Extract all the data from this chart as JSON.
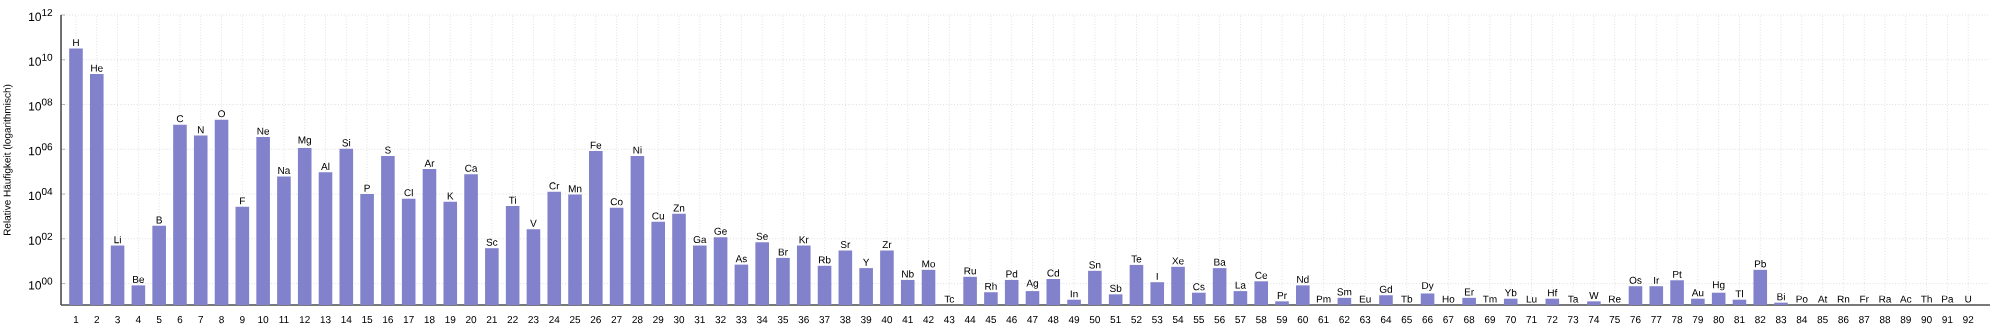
{
  "chart_data": {
    "type": "bar",
    "ylabel": "Relative Häufigkeit (logarithmisch)",
    "log": "y",
    "grid": true,
    "color": "#8282cc",
    "ylim": [
      0.11,
      1000000000000.0
    ],
    "yticks": [
      {
        "value": 1,
        "label": "10$^{00}$"
      },
      {
        "value": 100,
        "label": "10$^{02}$"
      },
      {
        "value": 10000,
        "label": "10$^{04}$"
      },
      {
        "value": 1000000,
        "label": "10$^{06}$"
      },
      {
        "value": 100000000,
        "label": "10$^{08}$"
      },
      {
        "value": 10000000000,
        "label": "10$^{10}$"
      },
      {
        "value": 1000000000000,
        "label": "10$^{12}$"
      }
    ],
    "categories": [
      "1",
      "2",
      "3",
      "4",
      "5",
      "6",
      "7",
      "8",
      "9",
      "10",
      "11",
      "12",
      "13",
      "14",
      "15",
      "16",
      "17",
      "18",
      "19",
      "20",
      "21",
      "22",
      "23",
      "24",
      "25",
      "26",
      "27",
      "28",
      "29",
      "30",
      "31",
      "32",
      "33",
      "34",
      "35",
      "36",
      "37",
      "38",
      "39",
      "40",
      "41",
      "42",
      "43",
      "44",
      "45",
      "46",
      "47",
      "48",
      "49",
      "50",
      "51",
      "52",
      "53",
      "54",
      "55",
      "56",
      "57",
      "58",
      "59",
      "60",
      "61",
      "62",
      "63",
      "64",
      "65",
      "66",
      "67",
      "68",
      "69",
      "70",
      "71",
      "72",
      "73",
      "74",
      "75",
      "76",
      "77",
      "78",
      "79",
      "80",
      "81",
      "82",
      "83",
      "84",
      "85",
      "86",
      "87",
      "88",
      "89",
      "90",
      "91",
      "92"
    ],
    "values": [
      32000000000.0,
      2300000000.0,
      50,
      0.83,
      380,
      12600000.0,
      4100000.0,
      21000000.0,
      2700,
      3500000.0,
      61000.0,
      1150000.0,
      93000.0,
      1050000.0,
      10000.0,
      500000.0,
      6200,
      130000.0,
      4500,
      77000.0,
      38,
      2900,
      270,
      12500.0,
      9500,
      830000.0,
      2450,
      500000.0,
      570,
      1300,
      50,
      118,
      7,
      70,
      14,
      50,
      6.2,
      30,
      4.9,
      30,
      1.45,
      4.1,
      null,
      2.0,
      0.41,
      1.45,
      0.46,
      1.6,
      0.19,
      3.7,
      0.33,
      6.8,
      1.15,
      5.6,
      0.39,
      4.9,
      0.46,
      1.26,
      0.16,
      0.83,
      null,
      0.23,
      null,
      0.3,
      null,
      0.36,
      null,
      0.23,
      null,
      0.21,
      null,
      0.21,
      null,
      0.16,
      null,
      0.76,
      0.76,
      1.4,
      0.21,
      0.39,
      0.19,
      4.1,
      0.14,
      null,
      null,
      null,
      null,
      null,
      null,
      null,
      null,
      null
    ],
    "annotations": [
      {
        "text": "H",
        "x": "1",
        "y": 32000000000.0
      },
      {
        "text": "He",
        "x": "2",
        "y": 2300000000.0
      },
      {
        "text": "Li",
        "x": "3",
        "y": 50
      },
      {
        "text": "Be",
        "x": "4",
        "y": 0.83
      },
      {
        "text": "B",
        "x": "5",
        "y": 380
      },
      {
        "text": "C",
        "x": "6",
        "y": 12600000.0
      },
      {
        "text": "N",
        "x": "7",
        "y": 4100000.0
      },
      {
        "text": "O",
        "x": "8",
        "y": 21000000.0
      },
      {
        "text": "F",
        "x": "9",
        "y": 2700
      },
      {
        "text": "Ne",
        "x": "10",
        "y": 3500000.0
      },
      {
        "text": "Na",
        "x": "11",
        "y": 61000.0
      },
      {
        "text": "Mg",
        "x": "12",
        "y": 1150000.0
      },
      {
        "text": "Al",
        "x": "13",
        "y": 93000.0
      },
      {
        "text": "Si",
        "x": "14",
        "y": 1050000.0
      },
      {
        "text": "P",
        "x": "15",
        "y": 10000.0
      },
      {
        "text": "S",
        "x": "16",
        "y": 500000.0
      },
      {
        "text": "Cl",
        "x": "17",
        "y": 6200
      },
      {
        "text": "Ar",
        "x": "18",
        "y": 130000.0
      },
      {
        "text": "K",
        "x": "19",
        "y": 4500
      },
      {
        "text": "Ca",
        "x": "20",
        "y": 77000.0
      },
      {
        "text": "Sc",
        "x": "21",
        "y": 38
      },
      {
        "text": "Ti",
        "x": "22",
        "y": 2900
      },
      {
        "text": "V",
        "x": "23",
        "y": 270
      },
      {
        "text": "Cr",
        "x": "24",
        "y": 12500.0
      },
      {
        "text": "Mn",
        "x": "25",
        "y": 9500
      },
      {
        "text": "Fe",
        "x": "26",
        "y": 830000.0
      },
      {
        "text": "Co",
        "x": "27",
        "y": 2450
      },
      {
        "text": "Ni",
        "x": "28",
        "y": 500000.0
      },
      {
        "text": "Cu",
        "x": "29",
        "y": 570
      },
      {
        "text": "Zn",
        "x": "30",
        "y": 1300
      },
      {
        "text": "Ga",
        "x": "31",
        "y": 50
      },
      {
        "text": "Ge",
        "x": "32",
        "y": 118
      },
      {
        "text": "As",
        "x": "33",
        "y": 7
      },
      {
        "text": "Se",
        "x": "34",
        "y": 70
      },
      {
        "text": "Br",
        "x": "35",
        "y": 14
      },
      {
        "text": "Kr",
        "x": "36",
        "y": 50
      },
      {
        "text": "Rb",
        "x": "37",
        "y": 6.2
      },
      {
        "text": "Sr",
        "x": "38",
        "y": 30
      },
      {
        "text": "Y",
        "x": "39",
        "y": 4.9
      },
      {
        "text": "Zr",
        "x": "40",
        "y": 30
      },
      {
        "text": "Nb",
        "x": "41",
        "y": 1.45
      },
      {
        "text": "Mo",
        "x": "42",
        "y": 4.1
      },
      "Tc",
      {
        "text": "Ru",
        "x": "44",
        "y": 2.0
      },
      {
        "text": "Rh",
        "x": "45",
        "y": 0.41
      },
      {
        "text": "Pd",
        "x": "46",
        "y": 1.45
      },
      {
        "text": "Ag",
        "x": "47",
        "y": 0.46
      },
      {
        "text": "Cd",
        "x": "48",
        "y": 1.6
      },
      {
        "text": "In",
        "x": "49",
        "y": 0.19
      },
      {
        "text": "Sn",
        "x": "50",
        "y": 3.7
      },
      {
        "text": "Sb",
        "x": "51",
        "y": 0.33
      },
      {
        "text": "Te",
        "x": "52",
        "y": 6.8
      },
      {
        "text": "I",
        "x": "53",
        "y": 1.15
      },
      {
        "text": "Xe",
        "x": "54",
        "y": 5.6
      },
      {
        "text": "Cs",
        "x": "55",
        "y": 0.39
      },
      {
        "text": "Ba",
        "x": "56",
        "y": 4.9
      },
      {
        "text": "La",
        "x": "57",
        "y": 0.46
      },
      {
        "text": "Ce",
        "x": "58",
        "y": 1.26
      },
      {
        "text": "Pr",
        "x": "59",
        "y": 0.16
      },
      {
        "text": "Nd",
        "x": "60",
        "y": 0.83
      },
      "Pm",
      {
        "text": "Sm",
        "x": "62",
        "y": 0.23
      },
      "Eu",
      {
        "text": "Gd",
        "x": "64",
        "y": 0.3
      },
      "Tb",
      {
        "text": "Dy",
        "x": "66",
        "y": 0.36
      },
      "Ho",
      {
        "text": "Er",
        "x": "68",
        "y": 0.23
      },
      "Tm",
      {
        "text": "Yb",
        "x": "70",
        "y": 0.21
      },
      "Lu",
      {
        "text": "Hf",
        "x": "72",
        "y": 0.21
      },
      "Ta",
      {
        "text": "W",
        "x": "74",
        "y": 0.16
      },
      "Re",
      {
        "text": "Os",
        "x": "76",
        "y": 0.76
      },
      {
        "text": "Ir",
        "x": "77",
        "y": 0.76
      },
      {
        "text": "Pt",
        "x": "78",
        "y": 1.4
      },
      {
        "text": "Au",
        "x": "79",
        "y": 0.21
      },
      {
        "text": "Hg",
        "x": "80",
        "y": 0.39
      },
      {
        "text": "Tl",
        "x": "81",
        "y": 0.19
      },
      {
        "text": "Pb",
        "x": "82",
        "y": 4.1
      },
      {
        "text": "Bi",
        "x": "83",
        "y": 0.14
      },
      "Po",
      "At",
      "Rn",
      "Fr",
      "Ra",
      "Ac",
      "Th",
      "Pa",
      "U"
    ]
  }
}
